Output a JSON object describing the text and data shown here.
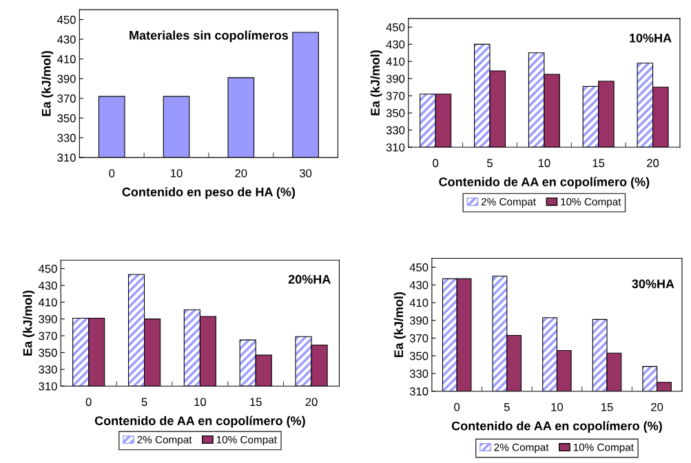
{
  "chart_data": [
    {
      "type": "bar",
      "categories": [
        "0",
        "10",
        "20",
        "30"
      ],
      "xlabel": "Contenido en peso de HA (%)",
      "ylabel": "Ea (kJ/mol)",
      "ylim": [
        310,
        460
      ],
      "yticks": [
        310,
        330,
        350,
        370,
        390,
        410,
        430,
        450
      ],
      "annotations": [
        "Materiales sin copolímeros"
      ],
      "series": [
        {
          "color": "#9999ff",
          "values": [
            372,
            372,
            391,
            437
          ]
        }
      ]
    },
    {
      "type": "bar",
      "categories": [
        "0",
        "5",
        "10",
        "15",
        "20"
      ],
      "xlabel": "Contenido de AA en copolímero (%)",
      "ylabel": "Ea (kJ/mol)",
      "ylim": [
        310,
        460
      ],
      "yticks": [
        310,
        330,
        350,
        370,
        390,
        410,
        430,
        450
      ],
      "annotations": [
        "10%HA"
      ],
      "legend": "bottom",
      "series": [
        {
          "name": "2% Compat",
          "color": "#9999ff",
          "values": [
            372,
            430,
            420,
            381,
            408
          ]
        },
        {
          "name": "10% Compat",
          "color": "#993366",
          "values": [
            372,
            399,
            395,
            387,
            380
          ]
        }
      ]
    },
    {
      "type": "bar",
      "categories": [
        "0",
        "5",
        "10",
        "15",
        "20"
      ],
      "xlabel": "Contenido de AA en copolímero (%)",
      "ylabel": "Ea (kJ/mol)",
      "ylim": [
        310,
        460
      ],
      "yticks": [
        310,
        330,
        350,
        370,
        390,
        410,
        430,
        450
      ],
      "annotations": [
        "20%HA"
      ],
      "legend": "bottom",
      "series": [
        {
          "name": "2% Compat",
          "color": "#9999ff",
          "values": [
            391,
            443,
            401,
            365,
            369
          ]
        },
        {
          "name": "10% Compat",
          "color": "#993366",
          "values": [
            391,
            390,
            393,
            347,
            359
          ]
        }
      ]
    },
    {
      "type": "bar",
      "categories": [
        "0",
        "5",
        "10",
        "15",
        "20"
      ],
      "xlabel": "Contenido de AA en copolímero (%)",
      "ylabel": "Ea (kJ/mol)",
      "ylim": [
        310,
        460
      ],
      "yticks": [
        310,
        330,
        350,
        370,
        390,
        410,
        430,
        450
      ],
      "annotations": [
        "30%HA"
      ],
      "legend": "bottom",
      "series": [
        {
          "name": "2% Compat",
          "color": "#9999ff",
          "values": [
            437,
            440,
            393,
            391,
            338
          ]
        },
        {
          "name": "10% Compat",
          "color": "#993366",
          "values": [
            437,
            373,
            356,
            353,
            320
          ]
        }
      ]
    }
  ]
}
